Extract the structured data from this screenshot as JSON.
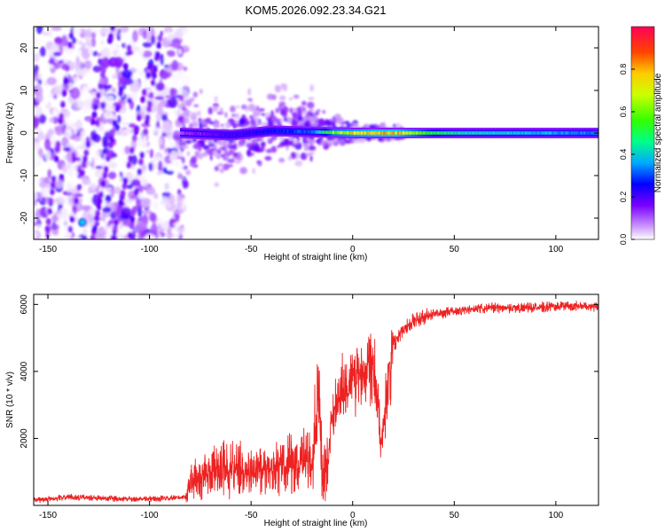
{
  "title": "KOM5.2026.092.23.34.G21",
  "chart_data": [
    {
      "type": "heatmap",
      "xlabel": "Height of straight line (km)",
      "ylabel": "Frequency (Hz)",
      "xlim": [
        -157,
        121
      ],
      "ylim": [
        -25,
        25
      ],
      "xticks": [
        -150,
        -100,
        -50,
        0,
        50,
        100
      ],
      "yticks": [
        -20,
        -10,
        0,
        10,
        20
      ],
      "colorbar": {
        "label": "Normalized spectral amplitude",
        "range": [
          0,
          1
        ],
        "ticks": [
          0.0,
          0.2,
          0.4,
          0.6,
          0.8
        ],
        "colors": [
          "#ffffff",
          "#cc99ff",
          "#7a00ff",
          "#0000ff",
          "#00ccff",
          "#00ff66",
          "#33ff00",
          "#ffff00",
          "#ff8800",
          "#ff0000",
          "#ff0066"
        ]
      },
      "description_series": [
        {
          "name": "carrier line center freq",
          "x": [
            -85,
            -60,
            -40,
            -20,
            0,
            20,
            50,
            120
          ],
          "values": [
            0,
            -2,
            2,
            1,
            0,
            0,
            0,
            0
          ]
        },
        {
          "name": "carrier line amplitude",
          "x": [
            -85,
            -60,
            -40,
            -20,
            -10,
            0,
            20,
            50,
            120
          ],
          "values": [
            0.15,
            0.25,
            0.3,
            0.35,
            0.65,
            0.7,
            0.75,
            0.45,
            0.35
          ]
        }
      ]
    },
    {
      "type": "line",
      "xlabel": "Height of straight line (km)",
      "ylabel": "SNR (10 * v/v)",
      "xlim": [
        -157,
        121
      ],
      "ylim": [
        0,
        6300
      ],
      "xticks": [
        -150,
        -100,
        -50,
        0,
        50,
        100
      ],
      "yticks": [
        2000,
        4000,
        6000
      ],
      "color": "#ee2222",
      "series": [
        {
          "name": "SNR envelope",
          "x": [
            -157,
            -140,
            -120,
            -100,
            -90,
            -82,
            -80,
            -70,
            -60,
            -50,
            -40,
            -30,
            -20,
            -17,
            -15,
            -12,
            -10,
            -5,
            0,
            5,
            10,
            13,
            14,
            16,
            20,
            25,
            30,
            40,
            50,
            60,
            70,
            80,
            90,
            100,
            110,
            121
          ],
          "values": [
            150,
            250,
            200,
            200,
            200,
            250,
            700,
            1000,
            1100,
            1000,
            1100,
            1200,
            1400,
            3500,
            1000,
            1200,
            2800,
            3500,
            3800,
            4000,
            4500,
            2800,
            1700,
            3000,
            4800,
            5300,
            5500,
            5700,
            5800,
            5850,
            5900,
            5900,
            5900,
            5950,
            5950,
            5950
          ]
        }
      ]
    }
  ]
}
